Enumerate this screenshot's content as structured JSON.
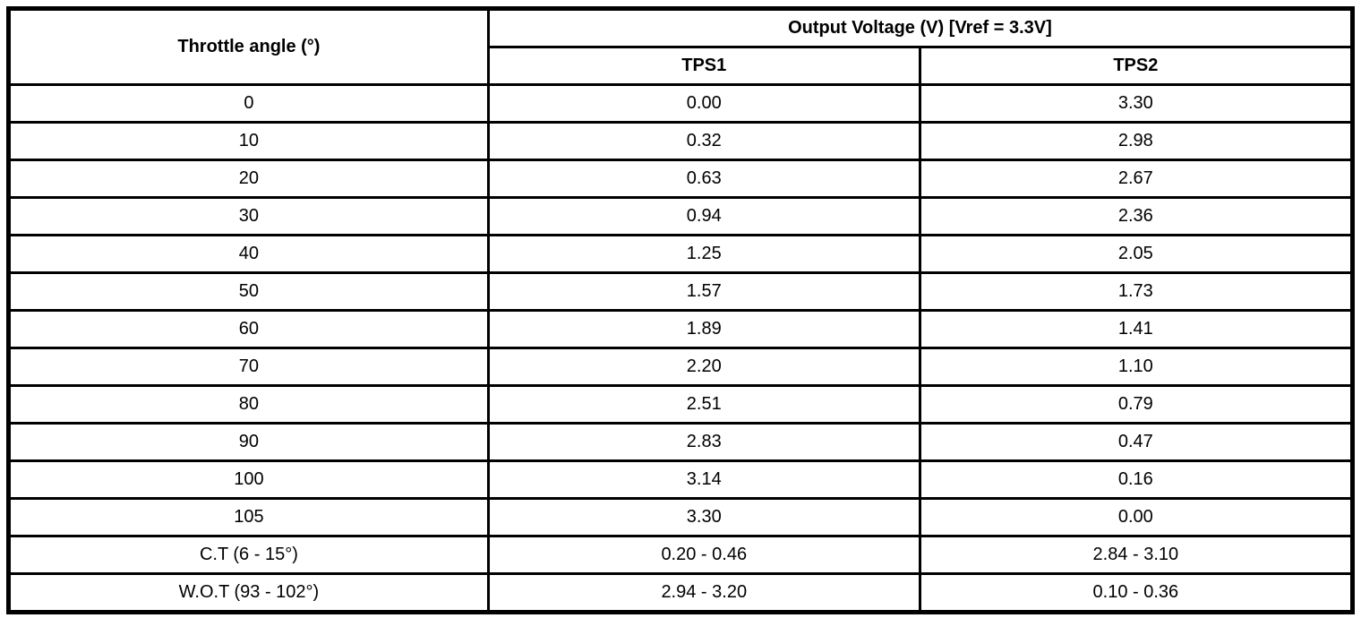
{
  "colors": {
    "border": "#000000",
    "background": "#ffffff",
    "text": "#000000"
  },
  "table": {
    "header": {
      "throttle_angle": "Throttle angle (°)",
      "output_voltage": "Output Voltage (V) [Vref = 3.3V]",
      "tps1": "TPS1",
      "tps2": "TPS2"
    },
    "rows": [
      {
        "angle": "0",
        "tps1": "0.00",
        "tps2": "3.30"
      },
      {
        "angle": "10",
        "tps1": "0.32",
        "tps2": "2.98"
      },
      {
        "angle": "20",
        "tps1": "0.63",
        "tps2": "2.67"
      },
      {
        "angle": "30",
        "tps1": "0.94",
        "tps2": "2.36"
      },
      {
        "angle": "40",
        "tps1": "1.25",
        "tps2": "2.05"
      },
      {
        "angle": "50",
        "tps1": "1.57",
        "tps2": "1.73"
      },
      {
        "angle": "60",
        "tps1": "1.89",
        "tps2": "1.41"
      },
      {
        "angle": "70",
        "tps1": "2.20",
        "tps2": "1.10"
      },
      {
        "angle": "80",
        "tps1": "2.51",
        "tps2": "0.79"
      },
      {
        "angle": "90",
        "tps1": "2.83",
        "tps2": "0.47"
      },
      {
        "angle": "100",
        "tps1": "3.14",
        "tps2": "0.16"
      },
      {
        "angle": "105",
        "tps1": "3.30",
        "tps2": "0.00"
      },
      {
        "angle": "C.T (6 - 15°)",
        "tps1": "0.20 - 0.46",
        "tps2": "2.84 - 3.10"
      },
      {
        "angle": "W.O.T (93 - 102°)",
        "tps1": "2.94 - 3.20",
        "tps2": "0.10 - 0.36"
      }
    ]
  },
  "chart_data": {
    "type": "table",
    "title": "Output Voltage (V) [Vref = 3.3V]",
    "columns": [
      "Throttle angle (°)",
      "TPS1",
      "TPS2"
    ],
    "x": [
      0,
      10,
      20,
      30,
      40,
      50,
      60,
      70,
      80,
      90,
      100,
      105
    ],
    "series": [
      {
        "name": "TPS1",
        "values": [
          0.0,
          0.32,
          0.63,
          0.94,
          1.25,
          1.57,
          1.89,
          2.2,
          2.51,
          2.83,
          3.14,
          3.3
        ]
      },
      {
        "name": "TPS2",
        "values": [
          3.3,
          2.98,
          2.67,
          2.36,
          2.05,
          1.73,
          1.41,
          1.1,
          0.79,
          0.47,
          0.16,
          0.0
        ]
      }
    ],
    "special_rows": [
      {
        "label": "C.T (6 - 15°)",
        "tps1_range": "0.20 - 0.46",
        "tps2_range": "2.84 - 3.10"
      },
      {
        "label": "W.O.T (93 - 102°)",
        "tps1_range": "2.94 - 3.20",
        "tps2_range": "0.10 - 0.36"
      }
    ]
  }
}
